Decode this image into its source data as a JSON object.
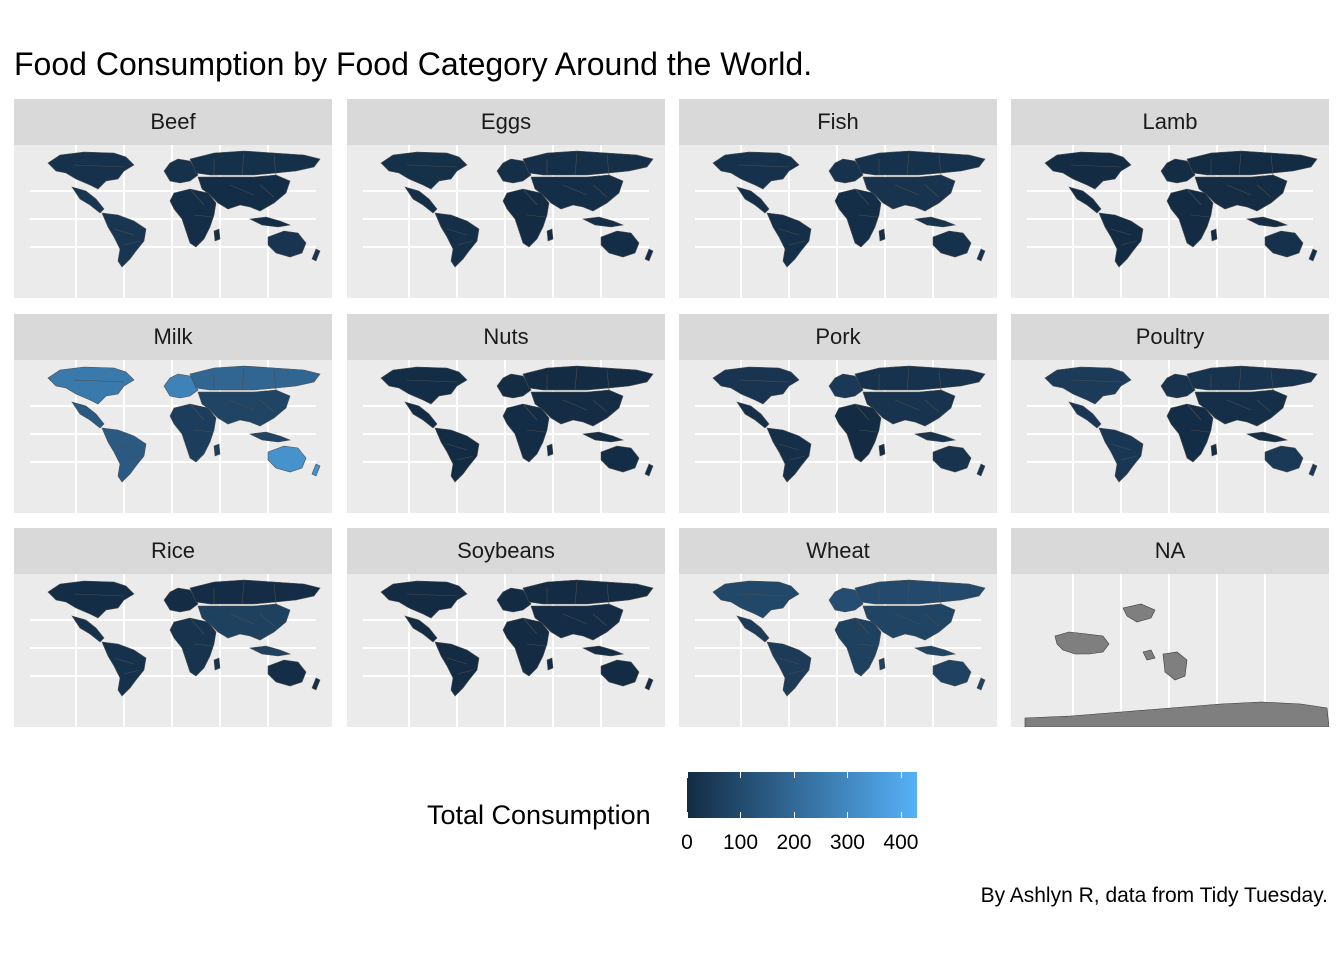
{
  "title": "Food Consumption by Food Category Around the World.",
  "caption": "By Ashlyn R, data from Tidy Tuesday.",
  "colors": {
    "strip_bg": "#d9d9d9",
    "panel_bg": "#ebebeb",
    "grid": "#ffffff",
    "country_border": "#4d4d4d",
    "scale_low": "#132B43",
    "scale_high": "#56B1F7",
    "na_fill": "#7f7f7f"
  },
  "chart_data": {
    "type": "choropleth",
    "facet_variable": "food_category",
    "legend": {
      "title": "Total Consumption",
      "position": "bottom",
      "range": [
        0,
        430
      ],
      "ticks": [
        "0",
        "100",
        "200",
        "300",
        "400"
      ]
    },
    "grid": true,
    "facets": [
      {
        "label": "Beef",
        "fills": {
          "north_america": 20,
          "south_america": 35,
          "europe": 18,
          "africa": 10,
          "russia": 15,
          "asia": 8,
          "oceania": 30
        }
      },
      {
        "label": "Eggs",
        "fills": {
          "north_america": 15,
          "south_america": 12,
          "europe": 14,
          "africa": 3,
          "russia": 14,
          "asia": 10,
          "oceania": 8
        }
      },
      {
        "label": "Fish",
        "fills": {
          "north_america": 20,
          "south_america": 12,
          "europe": 22,
          "africa": 10,
          "russia": 20,
          "asia": 25,
          "oceania": 18
        }
      },
      {
        "label": "Lamb",
        "fills": {
          "north_america": 2,
          "south_america": 2,
          "europe": 5,
          "africa": 3,
          "russia": 2,
          "asia": 5,
          "oceania": 20
        }
      },
      {
        "label": "Milk",
        "fills": {
          "north_america": 250,
          "south_america": 150,
          "europe": 280,
          "africa": 60,
          "russia": 190,
          "asia": 80,
          "oceania": 330
        }
      },
      {
        "label": "Nuts",
        "fills": {
          "north_america": 6,
          "south_america": 3,
          "europe": 5,
          "africa": 6,
          "russia": 2,
          "asia": 5,
          "oceania": 6
        }
      },
      {
        "label": "Pork",
        "fills": {
          "north_america": 30,
          "south_america": 12,
          "europe": 45,
          "africa": 2,
          "russia": 22,
          "asia": 25,
          "oceania": 25
        }
      },
      {
        "label": "Poultry",
        "fills": {
          "north_america": 50,
          "south_america": 40,
          "europe": 25,
          "africa": 8,
          "russia": 25,
          "asia": 12,
          "oceania": 45
        }
      },
      {
        "label": "Rice",
        "fills": {
          "north_america": 8,
          "south_america": 20,
          "europe": 5,
          "africa": 25,
          "russia": 4,
          "asia": 70,
          "oceania": 10
        }
      },
      {
        "label": "Soybeans",
        "fills": {
          "north_america": 1,
          "south_america": 1,
          "europe": 1,
          "africa": 1,
          "russia": 0,
          "asia": 4,
          "oceania": 0
        }
      },
      {
        "label": "Wheat",
        "fills": {
          "north_america": 90,
          "south_america": 50,
          "europe": 110,
          "africa": 70,
          "russia": 100,
          "asia": 80,
          "oceania": 75
        }
      },
      {
        "label": "NA",
        "fills": {}
      }
    ]
  }
}
